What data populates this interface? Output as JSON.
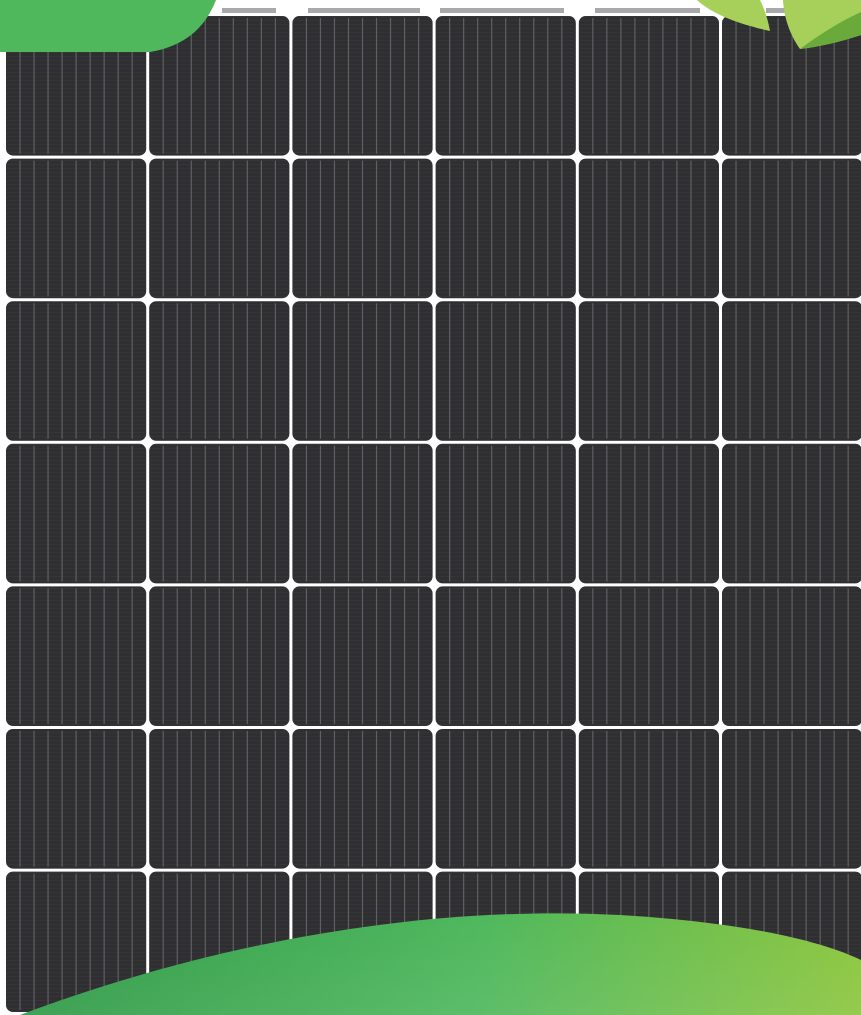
{
  "scene": {
    "subject": "solar-panel",
    "grid": {
      "columns": 6,
      "rows": 7,
      "fingers_per_cell": 10
    },
    "colors": {
      "cell": "#2f2f31",
      "cell_dark": "#262628",
      "finger": "#5f6063",
      "hatch": "#3a3a3d",
      "gap": "#ffffff",
      "busbar": "#a7a8ab",
      "green_dark": "#2e9a47",
      "green": "#4fb85d",
      "green_light": "#8cc63f",
      "leaf_light": "#a6d05a",
      "leaf_dark": "#6aaa3a"
    }
  }
}
